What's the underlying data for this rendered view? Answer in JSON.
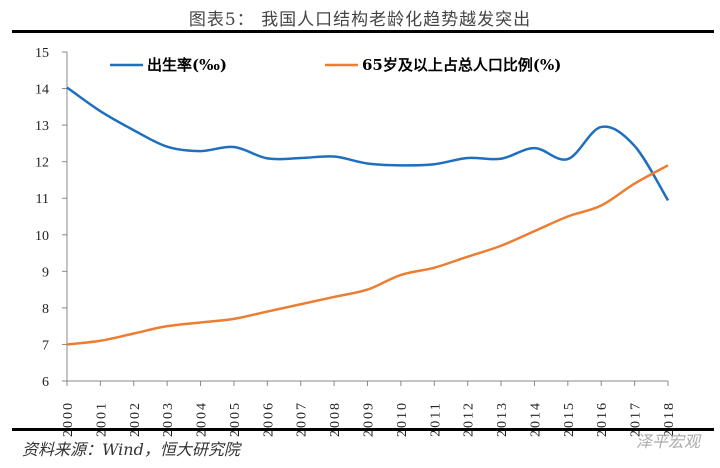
{
  "title": "图表5：  我国人口结构老龄化趋势越发突出",
  "source": "资料来源：Wind，恒大研究院",
  "watermark": "泽平宏观",
  "chart_data": {
    "type": "line",
    "x": [
      "2000",
      "2001",
      "2002",
      "2003",
      "2004",
      "2005",
      "2006",
      "2007",
      "2008",
      "2009",
      "2010",
      "2011",
      "2012",
      "2013",
      "2014",
      "2015",
      "2016",
      "2017",
      "2018"
    ],
    "series": [
      {
        "name": "出生率(‰)",
        "color": "#1f6fbf",
        "values": [
          14.03,
          13.38,
          12.86,
          12.41,
          12.29,
          12.4,
          12.09,
          12.1,
          12.14,
          11.95,
          11.9,
          11.93,
          12.1,
          12.08,
          12.37,
          12.07,
          12.95,
          12.43,
          10.94
        ]
      },
      {
        "name": "65岁及以上占总人口比例(%)",
        "color": "#ed7d31",
        "values": [
          7.0,
          7.1,
          7.3,
          7.5,
          7.6,
          7.7,
          7.9,
          8.1,
          8.3,
          8.5,
          8.9,
          9.1,
          9.4,
          9.7,
          10.1,
          10.5,
          10.8,
          11.4,
          11.9
        ]
      }
    ],
    "yticks": [
      "6",
      "7",
      "8",
      "9",
      "10",
      "11",
      "12",
      "13",
      "14",
      "15"
    ],
    "ylim": [
      6,
      15
    ],
    "grid": false,
    "legend": "top"
  }
}
